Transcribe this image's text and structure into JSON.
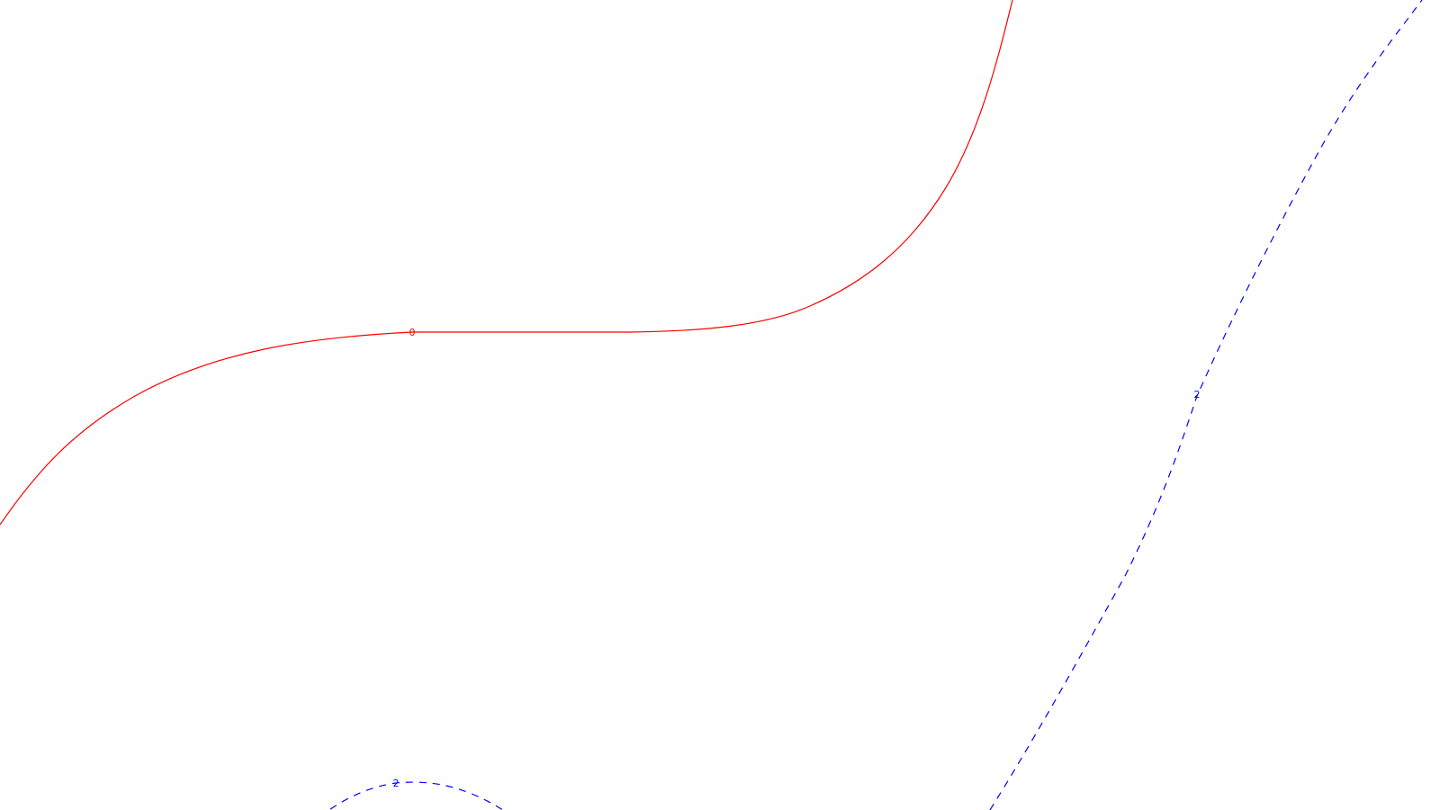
{
  "chart_data": {
    "type": "contour",
    "title": "",
    "xlabel": "",
    "ylabel": "",
    "axes_visible": false,
    "grid": false,
    "legend": "none",
    "contours": [
      {
        "level": "0",
        "color": "#ff0000",
        "line_style": "solid",
        "label_text": "0"
      },
      {
        "level": "2",
        "color": "#0000ff",
        "line_style": "dashed",
        "label_text": "2",
        "segments": 2
      }
    ]
  }
}
